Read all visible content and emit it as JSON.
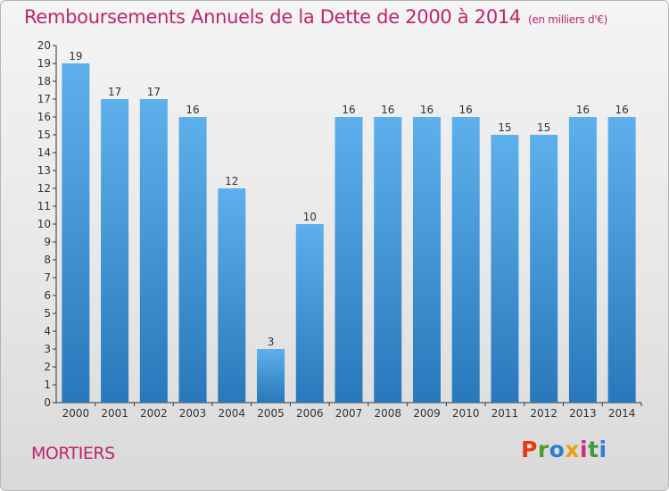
{
  "header": {
    "title": "Remboursements Annuels de la Dette de 2000 à 2014",
    "subtitle": "(en milliers d'€)"
  },
  "footer": {
    "commune": "MORTIERS",
    "logo_letters": [
      "P",
      "r",
      "o",
      "x",
      "i",
      "t",
      "i"
    ],
    "logo_colors": [
      "#e63a12",
      "#4f9a2e",
      "#2f7fd1",
      "#e9a112",
      "#cf2d7d",
      "#3e9a3e",
      "#2f7fd1"
    ]
  },
  "colors": {
    "bar_top": "#5eb0ec",
    "bar_bottom": "#2878bb",
    "axis": "#333333",
    "text": "#333333"
  },
  "chart_data": {
    "type": "bar",
    "title": "Remboursements Annuels de la Dette de 2000 à 2014",
    "subtitle": "(en milliers d'€)",
    "categories": [
      "2000",
      "2001",
      "2002",
      "2003",
      "2004",
      "2005",
      "2006",
      "2007",
      "2008",
      "2009",
      "2010",
      "2011",
      "2012",
      "2013",
      "2014"
    ],
    "values": [
      19,
      17,
      17,
      16,
      12,
      3,
      10,
      16,
      16,
      16,
      16,
      15,
      15,
      16,
      16
    ],
    "ylim": [
      0,
      20
    ],
    "yticks": [
      0,
      1,
      2,
      3,
      4,
      5,
      6,
      7,
      8,
      9,
      10,
      11,
      12,
      13,
      14,
      15,
      16,
      17,
      18,
      19,
      20
    ],
    "grid": false,
    "legend": "none"
  }
}
